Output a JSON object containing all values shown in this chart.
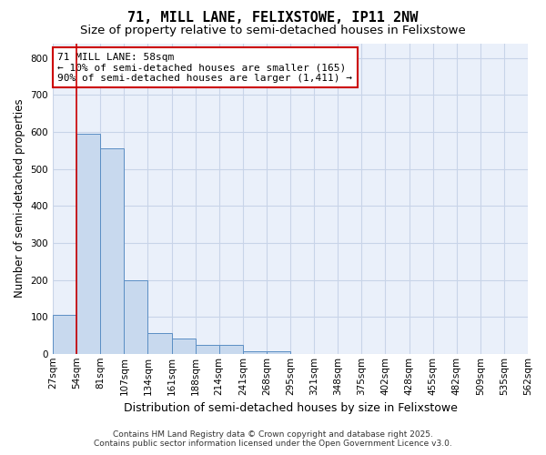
{
  "title": "71, MILL LANE, FELIXSTOWE, IP11 2NW",
  "subtitle": "Size of property relative to semi-detached houses in Felixstowe",
  "xlabel": "Distribution of semi-detached houses by size in Felixstowe",
  "ylabel": "Number of semi-detached properties",
  "bin_edges_labels": [
    "27sqm",
    "54sqm",
    "81sqm",
    "107sqm",
    "134sqm",
    "161sqm",
    "188sqm",
    "214sqm",
    "241sqm",
    "268sqm",
    "295sqm",
    "321sqm",
    "348sqm",
    "375sqm",
    "402sqm",
    "428sqm",
    "455sqm",
    "482sqm",
    "509sqm",
    "535sqm",
    "562sqm"
  ],
  "bar_values": [
    105,
    595,
    555,
    200,
    55,
    42,
    25,
    25,
    8,
    8,
    0,
    0,
    0,
    0,
    0,
    0,
    0,
    0,
    0,
    0
  ],
  "bar_color": "#c8d9ee",
  "bar_edge_color": "#5b8ec4",
  "vline_position": 1,
  "vline_color": "#cc0000",
  "ylim": [
    0,
    840
  ],
  "yticks": [
    0,
    100,
    200,
    300,
    400,
    500,
    600,
    700,
    800
  ],
  "annotation_text": "71 MILL LANE: 58sqm\n← 10% of semi-detached houses are smaller (165)\n90% of semi-detached houses are larger (1,411) →",
  "annotation_box_facecolor": "#ffffff",
  "annotation_box_edgecolor": "#cc0000",
  "grid_color": "#c8d4e8",
  "plot_bg_color": "#eaf0fa",
  "fig_bg_color": "#ffffff",
  "footer_line1": "Contains HM Land Registry data © Crown copyright and database right 2025.",
  "footer_line2": "Contains public sector information licensed under the Open Government Licence v3.0.",
  "title_fontsize": 11,
  "subtitle_fontsize": 9.5,
  "xlabel_fontsize": 9,
  "ylabel_fontsize": 8.5,
  "tick_fontsize": 7.5,
  "annotation_fontsize": 8,
  "footer_fontsize": 6.5
}
